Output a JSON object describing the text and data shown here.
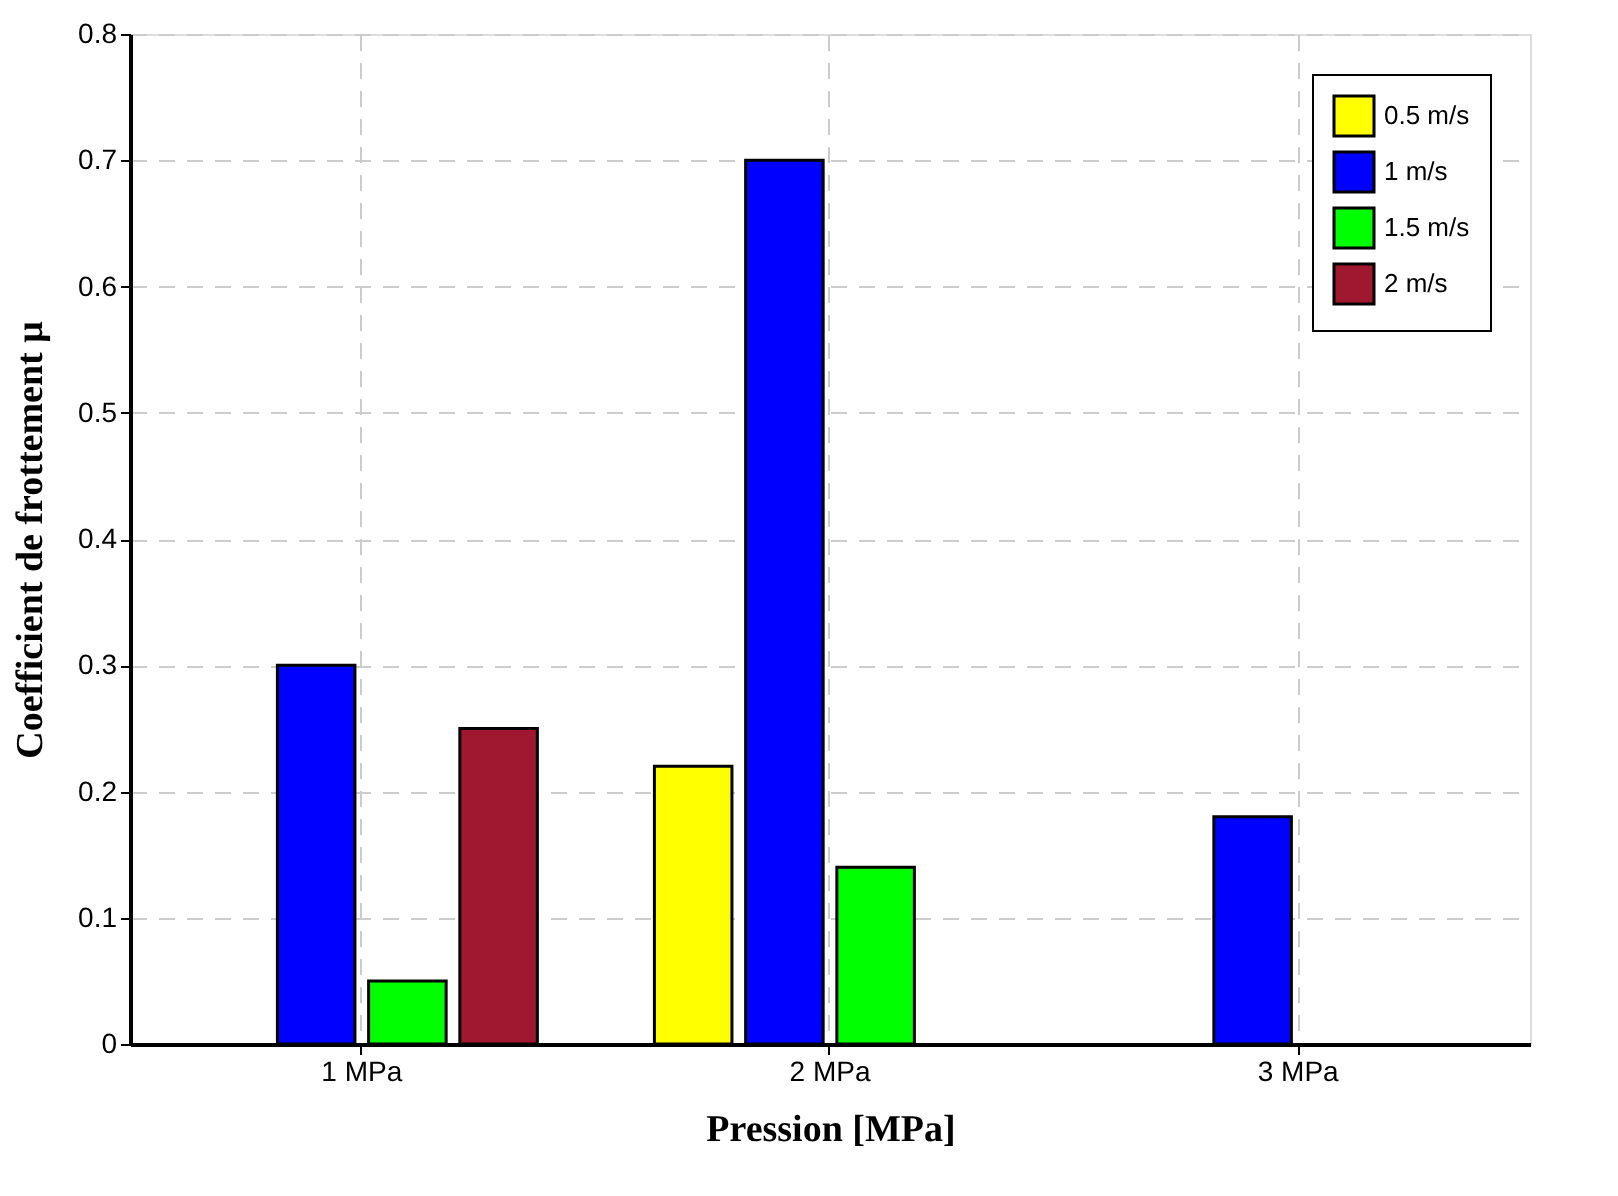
{
  "chart_data": {
    "type": "bar",
    "xlabel": "Pression [MPa]",
    "ylabel": "Coefficient de frottement μ",
    "categories": [
      "1 MPa",
      "2 MPa",
      "3 MPa"
    ],
    "series": [
      {
        "name": "0.5 m/s",
        "color": "#ffff00",
        "values": [
          null,
          0.22,
          null
        ]
      },
      {
        "name": "1 m/s",
        "color": "#0000ff",
        "values": [
          0.3,
          0.7,
          0.18
        ]
      },
      {
        "name": "1.5 m/s",
        "color": "#00ff00",
        "values": [
          0.05,
          0.14,
          null
        ]
      },
      {
        "name": "2 m/s",
        "color": "#a01830",
        "values": [
          0.25,
          null,
          null
        ]
      }
    ],
    "ylim": [
      0,
      0.8
    ],
    "yticks": [
      0,
      0.1,
      0.2,
      0.3,
      0.4,
      0.5,
      0.6,
      0.7,
      0.8
    ],
    "grid": true,
    "legend": "top right"
  }
}
